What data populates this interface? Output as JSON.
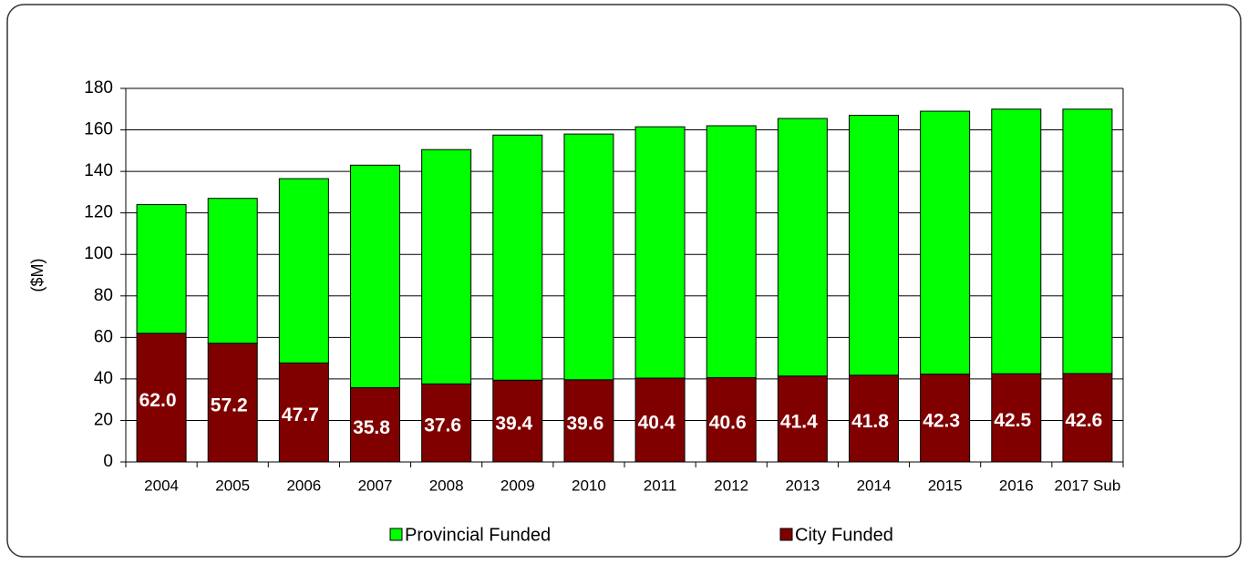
{
  "chart_data": {
    "type": "stacked_bar",
    "y_label": "($M)",
    "categories": [
      "2004",
      "2005",
      "2006",
      "2007",
      "2008",
      "2009",
      "2010",
      "2011",
      "2012",
      "2013",
      "2014",
      "2015",
      "2016",
      "2017 Sub"
    ],
    "series": [
      {
        "name": "City Funded",
        "color": "#800000",
        "values": [
          62.0,
          57.2,
          47.7,
          35.8,
          37.6,
          39.4,
          39.6,
          40.4,
          40.6,
          41.4,
          41.8,
          42.3,
          42.5,
          42.6
        ],
        "value_labels": [
          "62.0",
          "57.2",
          "47.7",
          "35.8",
          "37.6",
          "39.4",
          "39.6",
          "40.4",
          "40.6",
          "41.4",
          "41.8",
          "42.3",
          "42.5",
          "42.6"
        ]
      },
      {
        "name": "Provincial Funded",
        "color": "#00ff00",
        "values": [
          62.0,
          69.8,
          88.8,
          107.2,
          112.9,
          118.1,
          118.4,
          121.1,
          121.4,
          124.1,
          125.2,
          126.7,
          127.5,
          127.4
        ]
      }
    ],
    "ylim": [
      0,
      180
    ],
    "yticks": [
      0,
      20,
      40,
      60,
      80,
      100,
      120,
      140,
      160,
      180
    ],
    "grid": true,
    "legend": "bottom"
  }
}
